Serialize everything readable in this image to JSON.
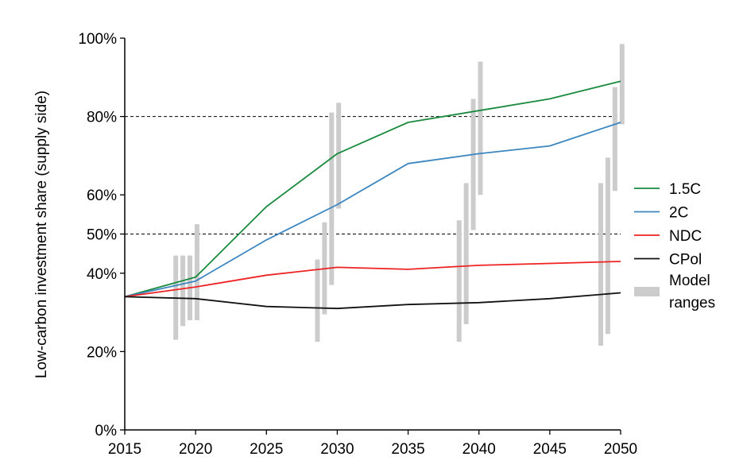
{
  "chart_data": {
    "type": "line",
    "ylabel": "Low-carbon investment share (supply side)",
    "xlim": [
      2015,
      2050
    ],
    "ylim": [
      0,
      100
    ],
    "x_ticks": [
      "2015",
      "2020",
      "2025",
      "2030",
      "2035",
      "2040",
      "2045",
      "2050"
    ],
    "y_ticks": [
      "0%",
      "20%",
      "40%",
      "50%",
      "60%",
      "80%",
      "100%"
    ],
    "reference_lines": [
      {
        "y": 80,
        "style": "dashed"
      },
      {
        "y": 50,
        "style": "dashed"
      }
    ],
    "x": [
      2015,
      2020,
      2025,
      2030,
      2035,
      2040,
      2045,
      2050
    ],
    "series": [
      {
        "name": "1.5C",
        "color": "#1a8a3e",
        "values": [
          34,
          39,
          57,
          70.5,
          78.5,
          81.5,
          84.5,
          89
        ]
      },
      {
        "name": "2C",
        "color": "#3c86c0",
        "values": [
          34,
          38,
          48.5,
          57.5,
          68,
          70.5,
          72.5,
          78.5
        ]
      },
      {
        "name": "NDC",
        "color": "#ee2222",
        "values": [
          34,
          36.5,
          39.5,
          41.5,
          41,
          42,
          42.5,
          43
        ]
      },
      {
        "name": "CPol",
        "color": "#111111",
        "values": [
          34,
          33.5,
          31.5,
          31,
          32,
          32.5,
          33.5,
          35
        ]
      }
    ],
    "model_ranges_label": [
      "Model",
      "ranges"
    ],
    "model_ranges_color": "#cccccc",
    "model_ranges": [
      {
        "x": 2018.6,
        "low": 23,
        "high": 44.5
      },
      {
        "x": 2019.1,
        "low": 26.5,
        "high": 44.5
      },
      {
        "x": 2019.6,
        "low": 28,
        "high": 44.5
      },
      {
        "x": 2020.1,
        "low": 28,
        "high": 52.5
      },
      {
        "x": 2028.6,
        "low": 22.5,
        "high": 43.5
      },
      {
        "x": 2029.1,
        "low": 29.5,
        "high": 53
      },
      {
        "x": 2029.6,
        "low": 37,
        "high": 81
      },
      {
        "x": 2030.1,
        "low": 56.5,
        "high": 83.5
      },
      {
        "x": 2038.6,
        "low": 22.5,
        "high": 53.5
      },
      {
        "x": 2039.1,
        "low": 27,
        "high": 63
      },
      {
        "x": 2039.6,
        "low": 51,
        "high": 84.5
      },
      {
        "x": 2040.1,
        "low": 60,
        "high": 94
      },
      {
        "x": 2048.6,
        "low": 21.5,
        "high": 63
      },
      {
        "x": 2049.1,
        "low": 24.5,
        "high": 69.5
      },
      {
        "x": 2049.6,
        "low": 61,
        "high": 87.5
      },
      {
        "x": 2050.1,
        "low": 78,
        "high": 98.5
      }
    ],
    "legend_position": "right"
  }
}
